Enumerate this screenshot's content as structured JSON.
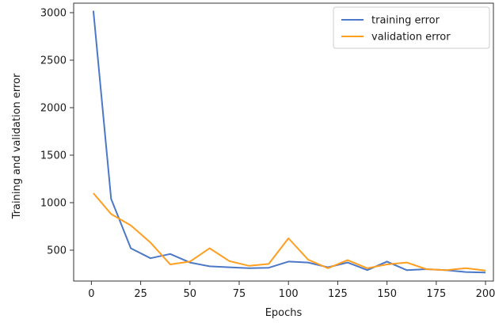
{
  "chart_data": {
    "type": "line",
    "title": "",
    "xlabel": "Epochs",
    "ylabel": "Training and validation error",
    "xlim": [
      -9,
      204
    ],
    "ylim": [
      175,
      3100
    ],
    "xticks": [
      0,
      25,
      50,
      75,
      100,
      125,
      150,
      175,
      200
    ],
    "yticks": [
      500,
      1000,
      1500,
      2000,
      2500,
      3000
    ],
    "grid": false,
    "legend_position": "top-right",
    "series": [
      {
        "name": "training error",
        "color": "#4c78c8",
        "x": [
          1,
          10,
          20,
          30,
          40,
          50,
          60,
          70,
          80,
          90,
          100,
          110,
          120,
          130,
          140,
          150,
          160,
          170,
          180,
          190,
          200
        ],
        "y": [
          3020,
          1040,
          520,
          415,
          460,
          370,
          330,
          320,
          310,
          315,
          380,
          370,
          320,
          370,
          290,
          380,
          290,
          300,
          290,
          270,
          265
        ]
      },
      {
        "name": "validation error",
        "color": "#ff9e1f",
        "x": [
          1,
          10,
          20,
          30,
          40,
          50,
          60,
          70,
          80,
          90,
          100,
          110,
          120,
          130,
          140,
          150,
          160,
          170,
          180,
          190,
          200
        ],
        "y": [
          1100,
          880,
          760,
          580,
          350,
          380,
          520,
          385,
          335,
          355,
          625,
          400,
          310,
          395,
          310,
          350,
          370,
          300,
          290,
          310,
          285
        ]
      }
    ]
  }
}
